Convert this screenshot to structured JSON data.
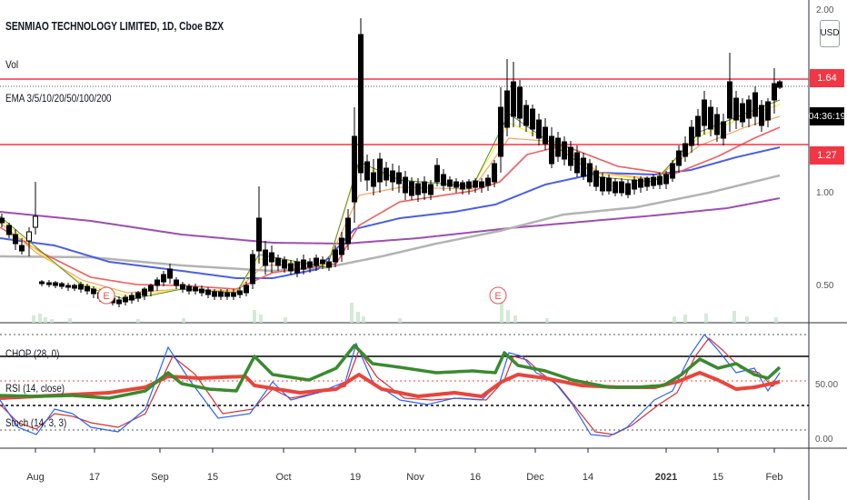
{
  "header": {
    "symbol_line": "SENMIAO TECHNOLOGY LIMITED, 1D, Cboe BZX",
    "volume_label": "Vol",
    "ema_label": "EMA 3/5/10/20/50/100/200"
  },
  "price_axis": {
    "labels": [
      "2.00",
      "1.00",
      "0.50"
    ],
    "currency_button": "USD",
    "tag_upper": "1.64",
    "tag_countdown": "04:36:19",
    "tag_lower": "1.27"
  },
  "indicator_panel": {
    "labels": [
      "CHOP (28, 0)",
      "RSI (14, close)",
      "Stoch (14, 3, 3)"
    ],
    "axis_labels": [
      "50.00",
      "0.00"
    ]
  },
  "time_axis": {
    "labels": [
      "Aug",
      "17",
      "Sep",
      "15",
      "Oct",
      "19",
      "Nov",
      "16",
      "Dec",
      "14",
      "2021",
      "15",
      "Feb"
    ]
  },
  "earnings_markers": [
    "E",
    "E"
  ],
  "colors": {
    "candle": "#000000",
    "resistance_line": "#f23645",
    "ema3": "#5b8a3c",
    "ema5": "#ffeb3b",
    "ema10": "#f4a460",
    "ema20": "#f05f5f",
    "ema50": "#4a5ee8",
    "ema100": "#b3b3b3",
    "ema200": "#9c4fb0",
    "chop": "#3a8a2e",
    "rsi": "#e8453c",
    "stoch_k": "#2962ff",
    "stoch_d": "#d32f2f",
    "volume": "#c8e6c9"
  }
}
